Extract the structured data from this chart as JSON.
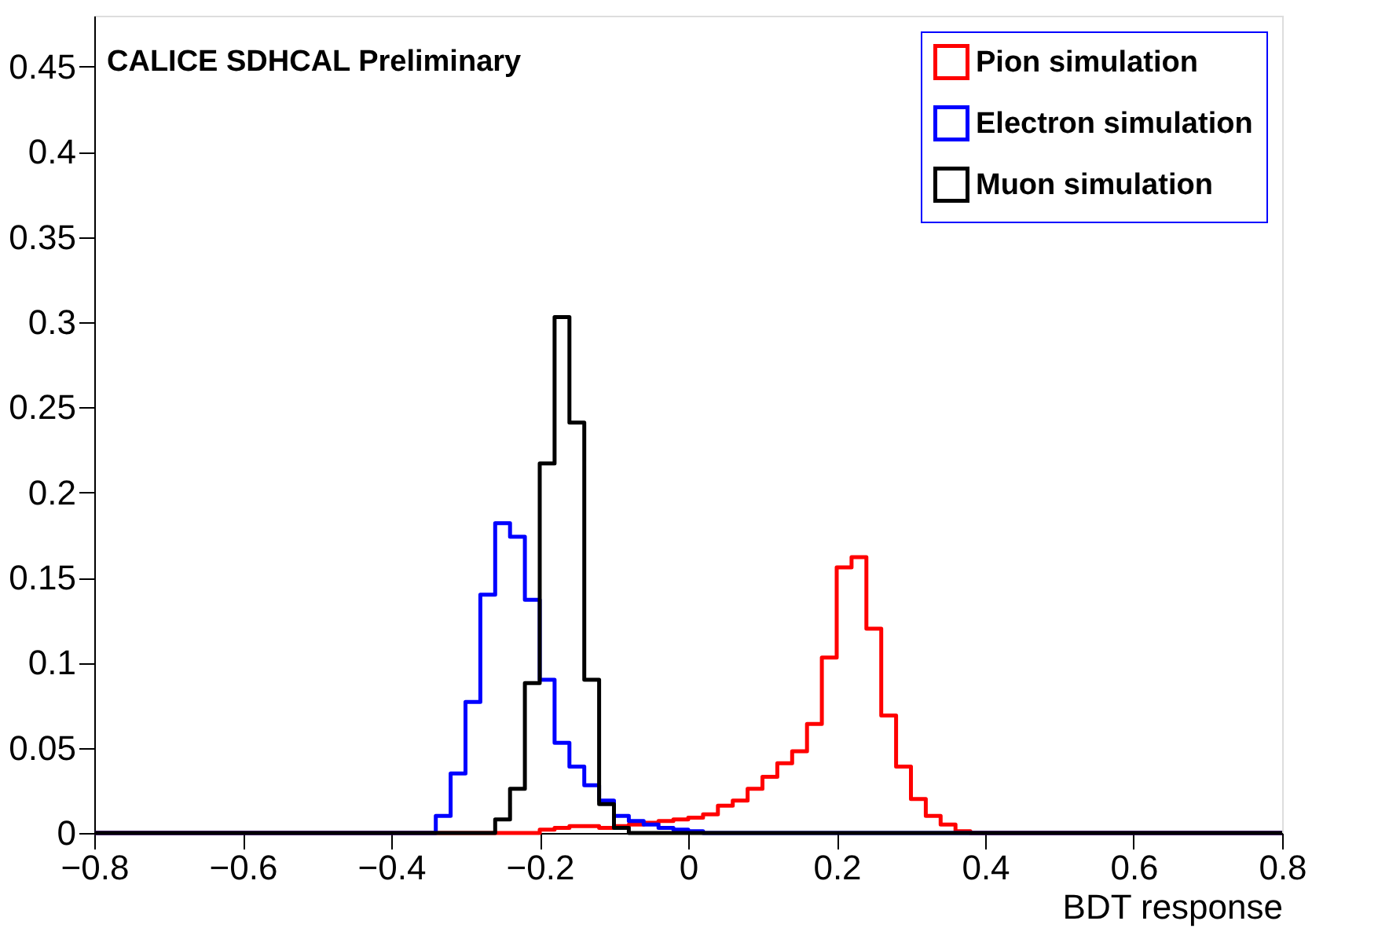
{
  "chart_data": {
    "type": "histogram",
    "xlabel": "BDT response",
    "annotations": [
      "CALICE SDHCAL Preliminary"
    ],
    "bins": [
      -0.8,
      -0.78,
      -0.76,
      -0.74,
      -0.72,
      -0.7,
      -0.68,
      -0.66,
      -0.64,
      -0.62,
      -0.6,
      -0.58,
      -0.56,
      -0.54,
      -0.52,
      -0.5,
      -0.48,
      -0.46,
      -0.44,
      -0.42,
      -0.4,
      -0.38,
      -0.36,
      -0.34,
      -0.32,
      -0.3,
      -0.28,
      -0.26,
      -0.24,
      -0.22,
      -0.2,
      -0.18,
      -0.16,
      -0.14,
      -0.12,
      -0.1,
      -0.08,
      -0.06,
      -0.04,
      -0.02,
      0,
      0.02,
      0.04,
      0.06,
      0.08,
      0.1,
      0.12,
      0.14,
      0.16,
      0.18,
      0.2,
      0.22,
      0.24,
      0.26,
      0.28,
      0.3,
      0.32,
      0.34,
      0.36,
      0.38,
      0.4,
      0.42,
      0.44,
      0.46,
      0.48,
      0.5,
      0.52,
      0.54,
      0.56,
      0.58,
      0.6,
      0.62,
      0.64,
      0.66,
      0.68,
      0.7,
      0.72,
      0.74,
      0.76,
      0.78,
      0.8
    ],
    "series": [
      {
        "name": "Pion simulation",
        "color": "#ff0000",
        "values": [
          0,
          0,
          0,
          0,
          0,
          0,
          0,
          0,
          0,
          0,
          0,
          0,
          0,
          0,
          0,
          0,
          0,
          0,
          0,
          0,
          0,
          0,
          0,
          0,
          0,
          0,
          0,
          0,
          0,
          0,
          0.002,
          0.003,
          0.004,
          0.004,
          0.003,
          0.004,
          0.005,
          0.006,
          0.007,
          0.008,
          0.009,
          0.011,
          0.016,
          0.019,
          0.026,
          0.033,
          0.041,
          0.048,
          0.064,
          0.103,
          0.156,
          0.162,
          0.12,
          0.069,
          0.039,
          0.02,
          0.01,
          0.005,
          0.001,
          0,
          0,
          0,
          0,
          0,
          0,
          0,
          0,
          0,
          0,
          0,
          0,
          0,
          0,
          0,
          0,
          0,
          0,
          0,
          0,
          0
        ]
      },
      {
        "name": "Electron simulation",
        "color": "#0000ff",
        "values": [
          0,
          0,
          0,
          0,
          0,
          0,
          0,
          0,
          0,
          0,
          0,
          0,
          0,
          0,
          0,
          0,
          0,
          0,
          0,
          0,
          0,
          0,
          0,
          0.01,
          0.035,
          0.077,
          0.14,
          0.182,
          0.174,
          0.137,
          0.09,
          0.053,
          0.039,
          0.028,
          0.019,
          0.01,
          0.007,
          0.005,
          0.003,
          0.002,
          0.001,
          0,
          0,
          0,
          0,
          0,
          0,
          0,
          0,
          0,
          0,
          0,
          0,
          0,
          0,
          0,
          0,
          0,
          0,
          0,
          0,
          0,
          0,
          0,
          0,
          0,
          0,
          0,
          0,
          0,
          0,
          0,
          0,
          0,
          0,
          0,
          0,
          0,
          0,
          0
        ]
      },
      {
        "name": "Muon simulation",
        "color": "#000000",
        "values": [
          0,
          0,
          0,
          0,
          0,
          0,
          0,
          0,
          0,
          0,
          0,
          0,
          0,
          0,
          0,
          0,
          0,
          0,
          0,
          0,
          0,
          0,
          0,
          0,
          0,
          0,
          0,
          0.008,
          0.026,
          0.088,
          0.217,
          0.303,
          0.241,
          0.09,
          0.017,
          0.003,
          0,
          0,
          0,
          0,
          0,
          0,
          0,
          0,
          0,
          0,
          0,
          0,
          0,
          0,
          0,
          0,
          0,
          0,
          0,
          0,
          0,
          0,
          0,
          0,
          0,
          0,
          0,
          0,
          0,
          0,
          0,
          0,
          0,
          0,
          0,
          0,
          0,
          0,
          0,
          0,
          0,
          0,
          0,
          0
        ]
      }
    ],
    "xlim": [
      -0.8,
      0.8
    ],
    "xticks": [
      -0.8,
      -0.6,
      -0.4,
      -0.2,
      0,
      0.2,
      0.4,
      0.6,
      0.8
    ],
    "ylim": [
      0,
      0.48
    ],
    "yticks": [
      0,
      0.05,
      0.1,
      0.15,
      0.2,
      0.25,
      0.3,
      0.35,
      0.4,
      0.45
    ],
    "legend": "top right"
  }
}
